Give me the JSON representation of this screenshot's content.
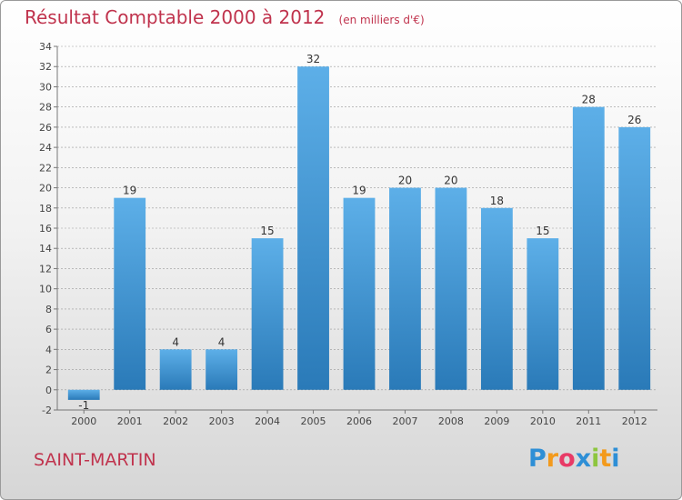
{
  "title": "Résultat Comptable 2000 à 2012",
  "subtitle": "(en milliers d'€)",
  "place_label": "SAINT-MARTIN",
  "logo": {
    "letters": [
      "P",
      "r",
      "o",
      "x",
      "i",
      "t",
      "i"
    ],
    "colors": [
      "#2e8fd6",
      "#f39a1c",
      "#e83a66",
      "#2e8fd6",
      "#8dc63f",
      "#f39a1c",
      "#2e8fd6"
    ]
  },
  "colors": {
    "title": "#c0334d",
    "bar_light": "#5dafe8",
    "bar_dark": "#2a7ab8",
    "grid": "#999999"
  },
  "chart_data": {
    "type": "bar",
    "categories": [
      "2000",
      "2001",
      "2002",
      "2003",
      "2004",
      "2005",
      "2006",
      "2007",
      "2008",
      "2009",
      "2010",
      "2011",
      "2012"
    ],
    "values": [
      -1,
      19,
      4,
      4,
      15,
      32,
      19,
      20,
      20,
      18,
      15,
      28,
      26
    ],
    "data_labels": [
      "-1",
      "19",
      "4",
      "4",
      "15",
      "32",
      "19",
      "20",
      "20",
      "18",
      "15",
      "28",
      "26"
    ],
    "ylim": [
      -2,
      34
    ],
    "yticks": [
      -2,
      0,
      2,
      4,
      6,
      8,
      10,
      12,
      14,
      16,
      18,
      20,
      22,
      24,
      26,
      28,
      30,
      32,
      34
    ],
    "grid": "horizontal dashed"
  }
}
